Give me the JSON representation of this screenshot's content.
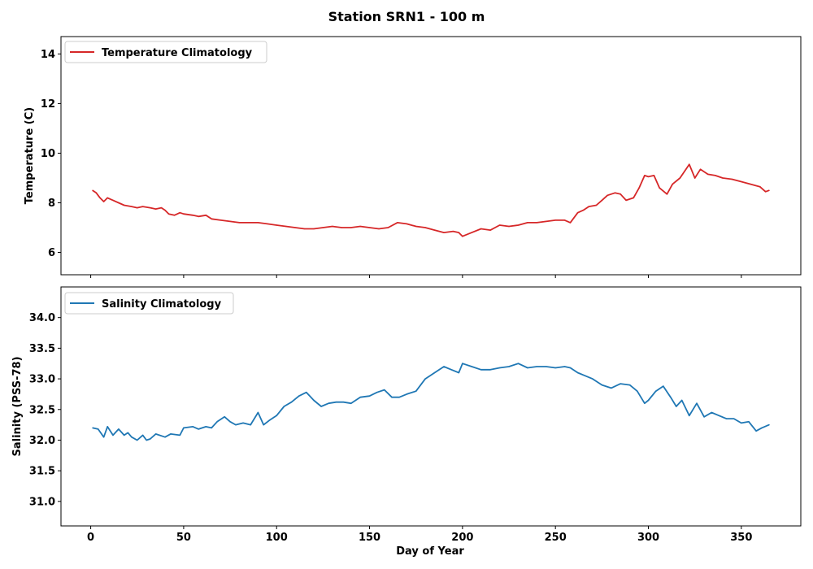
{
  "figure": {
    "title": "Station SRN1 - 100 m",
    "xlabel": "Day of Year"
  },
  "chart_data": [
    {
      "type": "line",
      "ylabel": "Temperature (C)",
      "xlim": [
        -16,
        382
      ],
      "ylim": [
        5.1,
        14.7
      ],
      "xticks": [
        0,
        50,
        100,
        150,
        200,
        250,
        300,
        350
      ],
      "yticks": [
        6,
        8,
        10,
        12,
        14
      ],
      "legend": "top-left",
      "series": [
        {
          "name": "Temperature Climatology",
          "color": "#d62728",
          "x": [
            1,
            3,
            5,
            7,
            9,
            12,
            15,
            18,
            22,
            25,
            28,
            32,
            35,
            38,
            40,
            42,
            45,
            48,
            50,
            55,
            58,
            62,
            65,
            70,
            75,
            80,
            85,
            90,
            95,
            100,
            105,
            110,
            115,
            120,
            125,
            130,
            135,
            140,
            145,
            150,
            155,
            160,
            165,
            170,
            175,
            180,
            185,
            190,
            195,
            198,
            200,
            205,
            210,
            215,
            220,
            225,
            230,
            235,
            240,
            245,
            250,
            255,
            258,
            262,
            265,
            268,
            272,
            275,
            278,
            282,
            285,
            288,
            292,
            295,
            298,
            300,
            303,
            306,
            310,
            313,
            317,
            322,
            325,
            328,
            332,
            336,
            340,
            345,
            350,
            355,
            360,
            363,
            365
          ],
          "y": [
            8.5,
            8.4,
            8.2,
            8.05,
            8.2,
            8.1,
            8.0,
            7.9,
            7.85,
            7.8,
            7.85,
            7.8,
            7.75,
            7.8,
            7.7,
            7.55,
            7.5,
            7.6,
            7.55,
            7.5,
            7.45,
            7.5,
            7.35,
            7.3,
            7.25,
            7.2,
            7.2,
            7.2,
            7.15,
            7.1,
            7.05,
            7.0,
            6.95,
            6.95,
            7.0,
            7.05,
            7.0,
            7.0,
            7.05,
            7.0,
            6.95,
            7.0,
            7.2,
            7.15,
            7.05,
            7.0,
            6.9,
            6.8,
            6.85,
            6.8,
            6.65,
            6.8,
            6.95,
            6.9,
            7.1,
            7.05,
            7.1,
            7.2,
            7.2,
            7.25,
            7.3,
            7.3,
            7.2,
            7.6,
            7.7,
            7.85,
            7.9,
            8.1,
            8.3,
            8.4,
            8.35,
            8.1,
            8.2,
            8.6,
            9.1,
            9.05,
            9.1,
            8.6,
            8.35,
            8.75,
            9.0,
            9.55,
            9.0,
            9.35,
            9.15,
            9.1,
            9.0,
            8.95,
            8.85,
            8.75,
            8.65,
            8.45,
            8.5
          ]
        }
      ]
    },
    {
      "type": "line",
      "ylabel": "Salinity (PSS-78)",
      "xlim": [
        -16,
        382
      ],
      "ylim": [
        30.6,
        34.5
      ],
      "xticks": [
        0,
        50,
        100,
        150,
        200,
        250,
        300,
        350
      ],
      "yticks": [
        31.0,
        31.5,
        32.0,
        32.5,
        33.0,
        33.5,
        34.0
      ],
      "ytick_labels": [
        "31.0",
        "31.5",
        "32.0",
        "32.5",
        "33.0",
        "33.5",
        "34.0"
      ],
      "legend": "top-left",
      "series": [
        {
          "name": "Salinity Climatology",
          "color": "#1f77b4",
          "x": [
            1,
            4,
            7,
            9,
            12,
            15,
            18,
            20,
            22,
            25,
            28,
            30,
            32,
            35,
            40,
            43,
            48,
            50,
            55,
            58,
            62,
            65,
            68,
            72,
            75,
            78,
            82,
            86,
            90,
            93,
            96,
            100,
            104,
            108,
            112,
            116,
            120,
            124,
            128,
            132,
            136,
            140,
            145,
            150,
            154,
            158,
            162,
            166,
            170,
            175,
            180,
            185,
            190,
            194,
            198,
            200,
            205,
            210,
            215,
            220,
            225,
            230,
            235,
            240,
            245,
            250,
            255,
            258,
            262,
            266,
            270,
            275,
            280,
            285,
            290,
            294,
            298,
            300,
            304,
            308,
            312,
            315,
            318,
            322,
            326,
            330,
            334,
            338,
            342,
            346,
            350,
            354,
            358,
            361,
            365
          ],
          "y": [
            32.2,
            32.18,
            32.05,
            32.22,
            32.08,
            32.18,
            32.08,
            32.12,
            32.05,
            32.0,
            32.08,
            32.0,
            32.02,
            32.1,
            32.05,
            32.1,
            32.08,
            32.2,
            32.22,
            32.18,
            32.22,
            32.2,
            32.3,
            32.38,
            32.3,
            32.25,
            32.28,
            32.25,
            32.45,
            32.25,
            32.32,
            32.4,
            32.55,
            32.62,
            32.72,
            32.78,
            32.65,
            32.55,
            32.6,
            32.62,
            32.62,
            32.6,
            32.7,
            32.72,
            32.78,
            32.82,
            32.7,
            32.7,
            32.75,
            32.8,
            33.0,
            33.1,
            33.2,
            33.15,
            33.1,
            33.25,
            33.2,
            33.15,
            33.15,
            33.18,
            33.2,
            33.25,
            33.18,
            33.2,
            33.2,
            33.18,
            33.2,
            33.18,
            33.1,
            33.05,
            33.0,
            32.9,
            32.85,
            32.92,
            32.9,
            32.8,
            32.6,
            32.65,
            32.8,
            32.88,
            32.7,
            32.55,
            32.65,
            32.4,
            32.6,
            32.38,
            32.45,
            32.4,
            32.35,
            32.35,
            32.28,
            32.3,
            32.15,
            32.2,
            32.25
          ]
        }
      ]
    }
  ]
}
